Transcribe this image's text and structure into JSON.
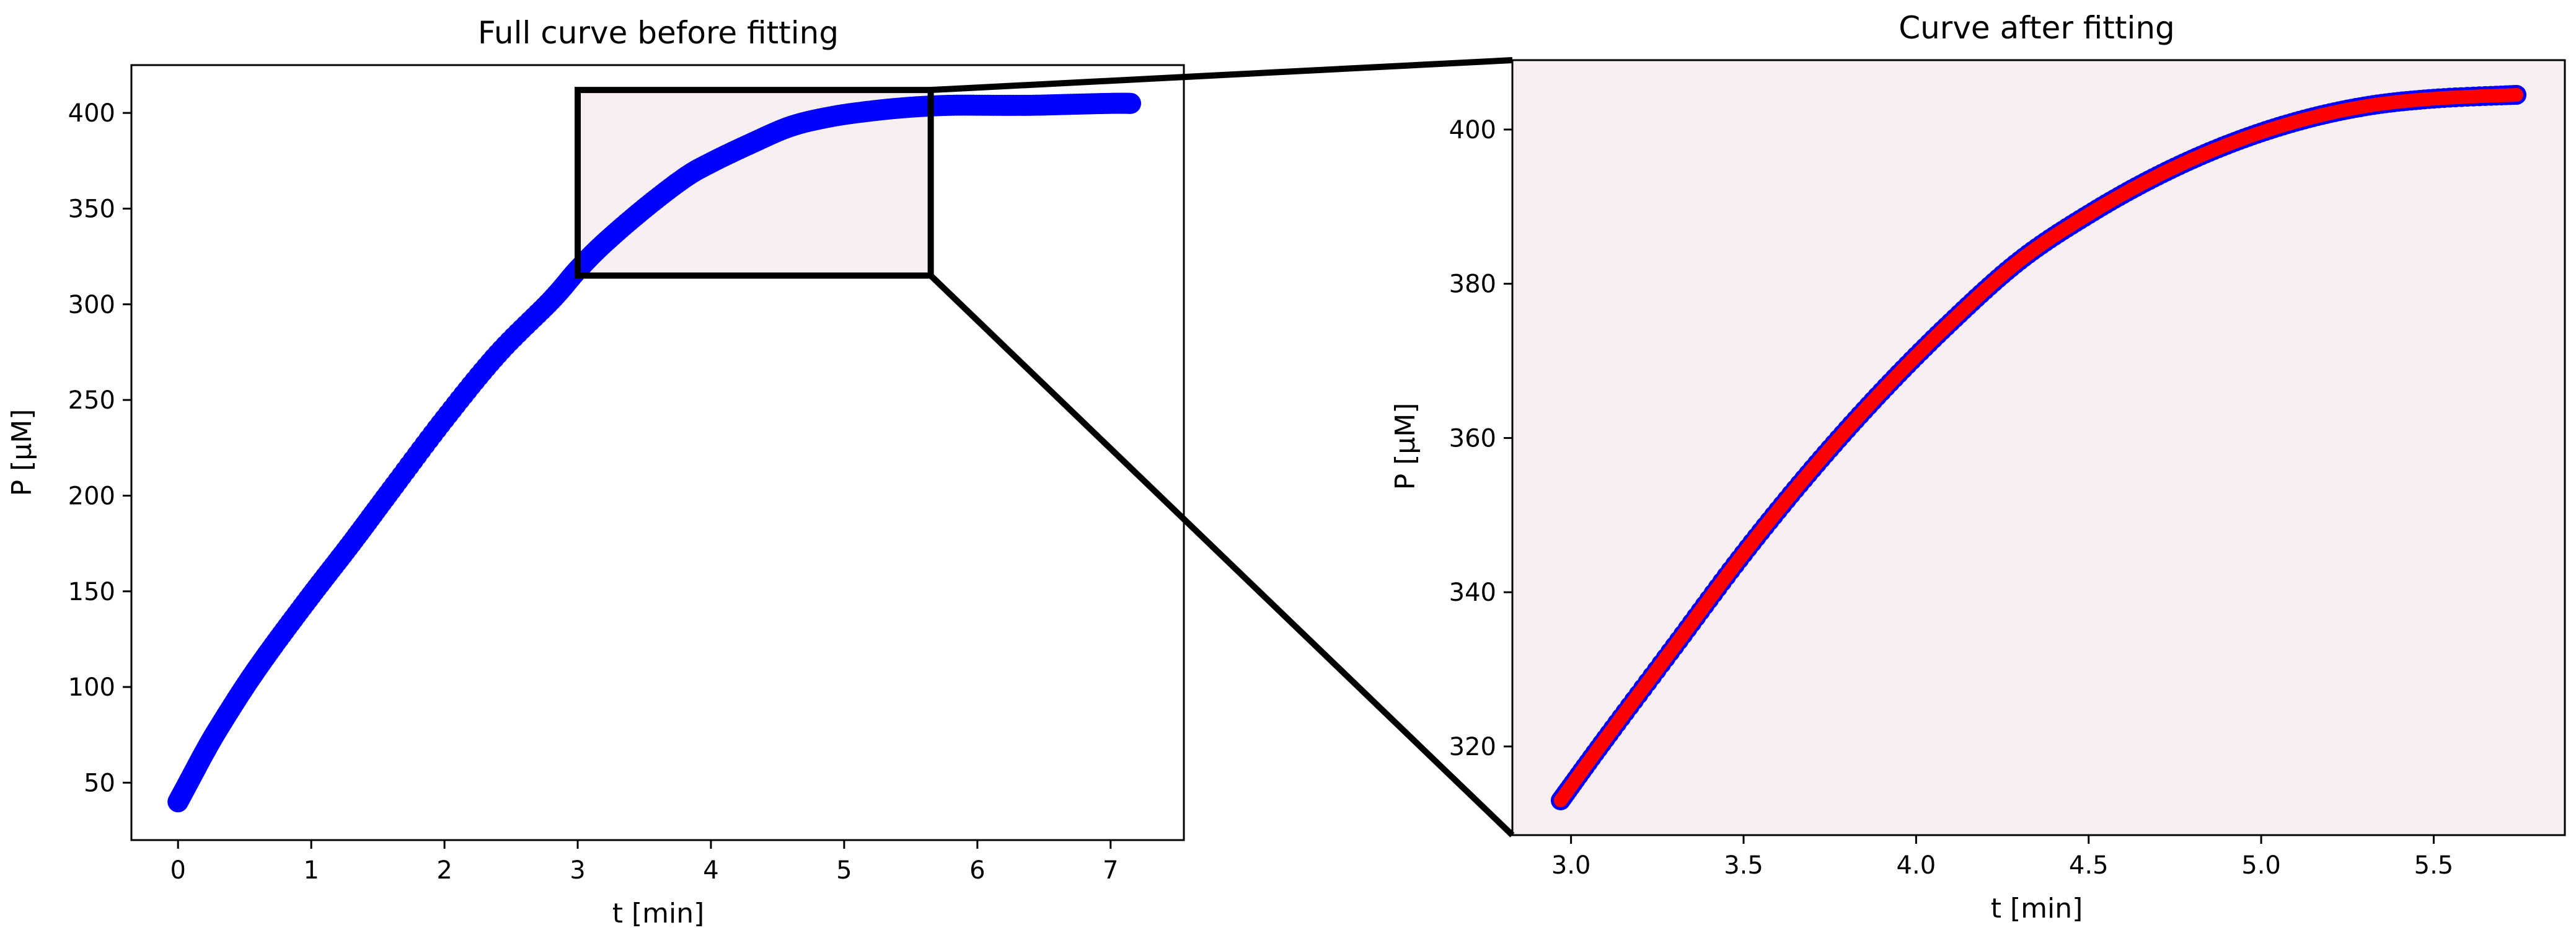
{
  "colors": {
    "raw_points": "#0000ff",
    "fit_line": "#ff0000",
    "zoom_fill": "#f8eff1",
    "frame": "#000000"
  },
  "chart_data": [
    {
      "type": "scatter",
      "title": "Full curve before fitting",
      "xlabel": "t [min]",
      "ylabel": "P [µM]",
      "xlim": [
        -0.35,
        7.55
      ],
      "ylim": [
        20,
        425
      ],
      "xticks": [
        0,
        1,
        2,
        3,
        4,
        5,
        6,
        7
      ],
      "yticks": [
        50,
        100,
        150,
        200,
        250,
        300,
        350,
        400
      ],
      "zoom_region": {
        "x": [
          3.0,
          5.65
        ],
        "y": [
          315,
          412
        ]
      },
      "series": [
        {
          "color": "#0000ff",
          "x": [
            0.0,
            0.1,
            0.2,
            0.3,
            0.5,
            0.7,
            1.0,
            1.3,
            1.6,
            2.0,
            2.4,
            2.8,
            3.0,
            3.2,
            3.5,
            3.8,
            4.0,
            4.3,
            4.6,
            4.9,
            5.2,
            5.5,
            5.8,
            6.1,
            6.4,
            6.7,
            7.0,
            7.15
          ],
          "y": [
            40,
            53,
            66,
            78,
            100,
            120,
            148,
            175,
            203,
            240,
            274,
            302,
            318,
            332,
            350,
            366,
            374,
            384,
            393,
            398,
            401,
            403,
            404,
            404,
            404,
            404.5,
            405,
            405
          ]
        }
      ]
    },
    {
      "type": "line",
      "title": "Curve after fitting",
      "xlabel": "t [min]",
      "ylabel": "P [µM]",
      "xlim": [
        2.83,
        5.88
      ],
      "ylim": [
        308.5,
        409
      ],
      "xticks": [
        3.0,
        3.5,
        4.0,
        4.5,
        5.0,
        5.5
      ],
      "xticklabels": [
        "3.0",
        "3.5",
        "4.0",
        "4.5",
        "5.0",
        "5.5"
      ],
      "yticks": [
        320,
        340,
        360,
        380,
        400
      ],
      "series": [
        {
          "color": "#0000ff",
          "x": [
            2.97,
            3.1,
            3.3,
            3.5,
            3.7,
            3.9,
            4.1,
            4.3,
            4.5,
            4.7,
            4.9,
            5.1,
            5.3,
            5.5,
            5.74
          ],
          "y": [
            313,
            321,
            333,
            345,
            356,
            366,
            375,
            383,
            389,
            394,
            398,
            401,
            403,
            404,
            404.5
          ]
        },
        {
          "color": "#ff0000",
          "x": [
            2.97,
            3.1,
            3.3,
            3.5,
            3.7,
            3.9,
            4.1,
            4.3,
            4.5,
            4.7,
            4.9,
            5.1,
            5.3,
            5.5,
            5.74
          ],
          "y": [
            313,
            321,
            333,
            345,
            356,
            366,
            375,
            383,
            389,
            394,
            398,
            401,
            403,
            404,
            404.5
          ]
        }
      ]
    }
  ]
}
